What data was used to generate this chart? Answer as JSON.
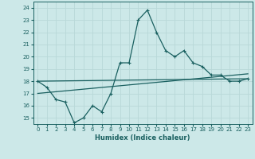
{
  "xlabel": "Humidex (Indice chaleur)",
  "bg_color": "#cce8e8",
  "grid_color": "#b8d8d8",
  "line_color": "#1a6060",
  "xlim": [
    -0.5,
    23.5
  ],
  "ylim": [
    14.5,
    24.5
  ],
  "xticks": [
    0,
    1,
    2,
    3,
    4,
    5,
    6,
    7,
    8,
    9,
    10,
    11,
    12,
    13,
    14,
    15,
    16,
    17,
    18,
    19,
    20,
    21,
    22,
    23
  ],
  "yticks": [
    15,
    16,
    17,
    18,
    19,
    20,
    21,
    22,
    23,
    24
  ],
  "main_line_x": [
    0,
    1,
    2,
    3,
    4,
    5,
    6,
    7,
    8,
    9,
    10,
    11,
    12,
    13,
    14,
    15,
    16,
    17,
    18,
    19,
    20,
    21,
    22,
    23
  ],
  "main_line_y": [
    18.0,
    17.5,
    16.5,
    16.3,
    14.6,
    15.0,
    16.0,
    15.5,
    17.0,
    19.5,
    19.5,
    23.0,
    23.8,
    22.0,
    20.5,
    20.0,
    20.5,
    19.5,
    19.2,
    18.5,
    18.5,
    18.0,
    18.0,
    18.2
  ],
  "trend1_x": [
    0,
    23
  ],
  "trend1_y": [
    18.0,
    18.2
  ],
  "trend2_x": [
    0,
    23
  ],
  "trend2_y": [
    17.0,
    18.6
  ]
}
